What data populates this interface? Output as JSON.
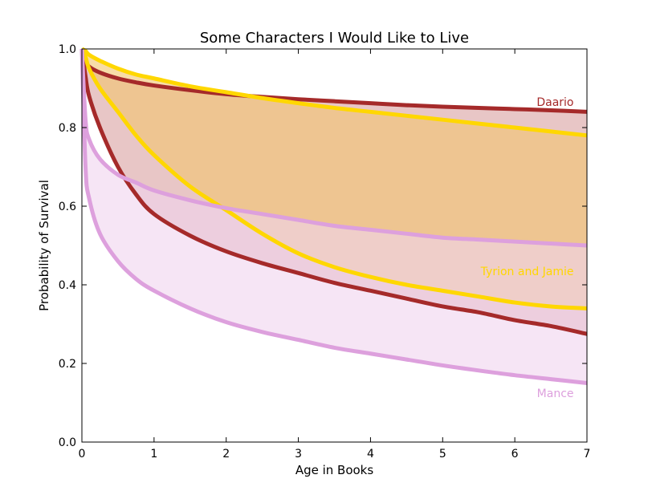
{
  "chart_data": {
    "type": "area",
    "title": "Some Characters I Would Like to Live",
    "xlabel": "Age in Books",
    "ylabel": "Probability of Survival",
    "xlim": [
      0,
      7
    ],
    "ylim": [
      0,
      1
    ],
    "xticks": [
      "0",
      "1",
      "2",
      "3",
      "4",
      "5",
      "6",
      "7"
    ],
    "yticks": [
      "0.0",
      "0.2",
      "0.4",
      "0.6",
      "0.8",
      "1.0"
    ],
    "grid": false,
    "legend": "none",
    "x": [
      0.0,
      0.05,
      0.1,
      0.25,
      0.5,
      0.75,
      1.0,
      1.5,
      2.0,
      2.5,
      3.0,
      3.5,
      4.0,
      4.5,
      5.0,
      5.5,
      6.0,
      6.5,
      7.0
    ],
    "series": [
      {
        "name": "Daario",
        "color": "#a52a2a",
        "fill": "#d9a0a0",
        "upper": [
          1.0,
          0.97,
          0.955,
          0.94,
          0.925,
          0.915,
          0.907,
          0.895,
          0.885,
          0.878,
          0.872,
          0.867,
          0.862,
          0.857,
          0.853,
          0.85,
          0.847,
          0.844,
          0.84
        ],
        "lower": [
          1.0,
          0.93,
          0.88,
          0.8,
          0.7,
          0.63,
          0.58,
          0.525,
          0.485,
          0.455,
          0.43,
          0.405,
          0.385,
          0.365,
          0.345,
          0.33,
          0.31,
          0.295,
          0.275
        ]
      },
      {
        "name": "Tyrion and Jamie",
        "color": "#ffd700",
        "fill": "#f2c46e",
        "upper": [
          1.0,
          0.995,
          0.985,
          0.97,
          0.95,
          0.935,
          0.925,
          0.905,
          0.89,
          0.875,
          0.862,
          0.85,
          0.84,
          0.83,
          0.82,
          0.81,
          0.8,
          0.79,
          0.78
        ],
        "lower": [
          1.0,
          0.98,
          0.95,
          0.9,
          0.84,
          0.78,
          0.73,
          0.65,
          0.59,
          0.53,
          0.48,
          0.445,
          0.42,
          0.4,
          0.385,
          0.37,
          0.355,
          0.345,
          0.34
        ]
      },
      {
        "name": "Mance",
        "color": "#dda0dd",
        "fill": "#f0d4ef",
        "upper": [
          1.0,
          0.82,
          0.77,
          0.72,
          0.68,
          0.66,
          0.64,
          0.615,
          0.595,
          0.58,
          0.565,
          0.55,
          0.54,
          0.53,
          0.52,
          0.515,
          0.51,
          0.505,
          0.5
        ],
        "lower": [
          1.0,
          0.7,
          0.62,
          0.53,
          0.46,
          0.415,
          0.385,
          0.34,
          0.305,
          0.28,
          0.26,
          0.24,
          0.225,
          0.21,
          0.195,
          0.182,
          0.17,
          0.16,
          0.15
        ]
      }
    ],
    "annotations": [
      {
        "text": "Daario",
        "x": 6.95,
        "y": 0.865
      },
      {
        "text": "Tyrion and Jamie",
        "x": 6.95,
        "y": 0.435
      },
      {
        "text": "Mance",
        "x": 6.95,
        "y": 0.125
      }
    ]
  }
}
